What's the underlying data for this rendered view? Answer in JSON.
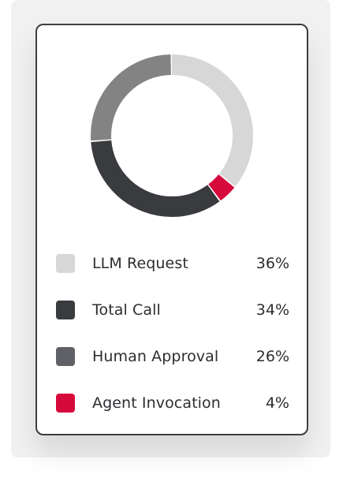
{
  "colors": {
    "llm_request": "#d7d7d7",
    "total_call": "#3a3b3f",
    "human_approval": "#838383",
    "agent_invocation": "#d6093b",
    "legend_human_approval": "#5f6166"
  },
  "chart_data": {
    "type": "pie",
    "style": "donut",
    "title": "",
    "legend_placement": "bottom",
    "series": [
      {
        "name": "LLM Request",
        "value": 36,
        "label": "36%"
      },
      {
        "name": "Total Call",
        "value": 34,
        "label": "34%"
      },
      {
        "name": "Human Approval",
        "value": 26,
        "label": "26%"
      },
      {
        "name": "Agent Invocation",
        "value": 4,
        "label": "4%"
      }
    ]
  },
  "legend": [
    {
      "label": "LLM Request",
      "pct": "36%",
      "color": "#d7d7d7"
    },
    {
      "label": "Total Call",
      "pct": "34%",
      "color": "#3a3b3f"
    },
    {
      "label": "Human Approval",
      "pct": "26%",
      "color": "#5f6166"
    },
    {
      "label": "Agent Invocation",
      "pct": "4%",
      "color": "#d6093b"
    }
  ]
}
